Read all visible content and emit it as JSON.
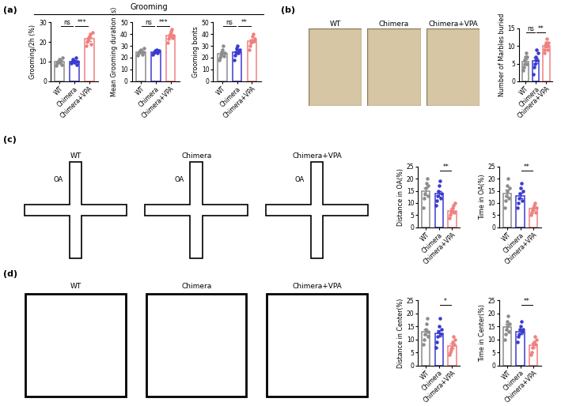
{
  "panels": [
    {
      "label": "(a)",
      "header": "Grooming"
    },
    {
      "label": "(b)",
      "images": [
        "WT",
        "Chimera",
        "Chimera+VPA"
      ]
    },
    {
      "label": "(c)",
      "images": [
        "WT",
        "Chimera",
        "Chimera+VPA"
      ],
      "arm_label": "OA"
    },
    {
      "label": "(d)",
      "images": [
        "WT",
        "Chimera",
        "Chimera+VPA"
      ]
    }
  ],
  "chart_data": [
    {
      "type": "bar",
      "ylabel": "Grooming/2h (%)",
      "categories": [
        "WT",
        "Chimera",
        "Chimera+VPA"
      ],
      "values": [
        9.8,
        10.1,
        21.5
      ],
      "errors": [
        0.6,
        0.5,
        0.9
      ],
      "points": [
        [
          8,
          9,
          10,
          11,
          9.5,
          10.5,
          8.5,
          12
        ],
        [
          9,
          10,
          11,
          10.5,
          9.5,
          12,
          8.5,
          10
        ],
        [
          18,
          20,
          21,
          22,
          23,
          24,
          19,
          25
        ]
      ],
      "colors": [
        "#8c8c8c",
        "#3a3ad0",
        "#f08080"
      ],
      "ylim": [
        0,
        30
      ],
      "yticks": [
        0,
        10,
        20,
        30
      ],
      "comparisons": [
        {
          "between": [
            "WT",
            "Chimera"
          ],
          "label": "ns"
        },
        {
          "between": [
            "Chimera",
            "Chimera+VPA"
          ],
          "label": "***"
        }
      ]
    },
    {
      "type": "bar",
      "ylabel": "Mean Grooming duration (s)",
      "categories": [
        "WT",
        "Chimera",
        "Chimera+VPA"
      ],
      "values": [
        25,
        25,
        38.6
      ],
      "errors": [
        0.8,
        0.6,
        1.3
      ],
      "points": [
        [
          22,
          24,
          25,
          26,
          27,
          23,
          25,
          28
        ],
        [
          23,
          24,
          25,
          26,
          25,
          27,
          24,
          26
        ],
        [
          33,
          36,
          38,
          40,
          42,
          44,
          37,
          39
        ]
      ],
      "colors": [
        "#8c8c8c",
        "#3a3ad0",
        "#f08080"
      ],
      "ylim": [
        0,
        50
      ],
      "yticks": [
        0,
        10,
        20,
        30,
        40,
        50
      ],
      "comparisons": [
        {
          "between": [
            "WT",
            "Chimera"
          ],
          "label": "ns"
        },
        {
          "between": [
            "Chimera",
            "Chimera+VPA"
          ],
          "label": "***"
        }
      ]
    },
    {
      "type": "bar",
      "ylabel": "Grooming bonts",
      "categories": [
        "WT",
        "Chimera",
        "Chimera+VPA"
      ],
      "values": [
        23.4,
        25,
        34.1
      ],
      "errors": [
        1.4,
        1.4,
        1.5
      ],
      "points": [
        [
          18,
          20,
          22,
          25,
          27,
          30,
          21,
          24
        ],
        [
          18,
          22,
          25,
          28,
          30,
          24,
          26,
          27
        ],
        [
          27,
          30,
          33,
          35,
          38,
          40,
          34,
          36
        ]
      ],
      "colors": [
        "#8c8c8c",
        "#3a3ad0",
        "#f08080"
      ],
      "ylim": [
        0,
        50
      ],
      "yticks": [
        0,
        10,
        20,
        30,
        40,
        50
      ],
      "comparisons": [
        {
          "between": [
            "WT",
            "Chimera"
          ],
          "label": "ns"
        },
        {
          "between": [
            "Chimera",
            "Chimera+VPA"
          ],
          "label": "**"
        }
      ]
    },
    {
      "type": "bar",
      "ylabel": "Number of Marbles buried",
      "categories": [
        "WT",
        "Chimera",
        "Chimera+VPA"
      ],
      "values": [
        5.6,
        5.9,
        10
      ],
      "errors": [
        0.6,
        0.8,
        0.5
      ],
      "points": [
        [
          3,
          4,
          5,
          6,
          7,
          8,
          5,
          7
        ],
        [
          2,
          4,
          5,
          6,
          7,
          9,
          6,
          8
        ],
        [
          8,
          9,
          10,
          11,
          12,
          9,
          10,
          11
        ]
      ],
      "colors": [
        "#8c8c8c",
        "#3a3ad0",
        "#f08080"
      ],
      "ylim": [
        0,
        15
      ],
      "yticks": [
        0,
        5,
        10,
        15
      ],
      "comparisons": [
        {
          "between": [
            "WT",
            "Chimera"
          ],
          "label": "ns"
        },
        {
          "between": [
            "Chimera",
            "Chimera+VPA"
          ],
          "label": "**"
        }
      ]
    },
    {
      "type": "bar",
      "ylabel": "Distance in OA(%)",
      "categories": [
        "WT",
        "Chimera",
        "Chimera+VPA"
      ],
      "values": [
        14.8,
        13.8,
        6.9
      ],
      "errors": [
        1.4,
        1.2,
        0.7
      ],
      "points": [
        [
          8,
          12,
          14,
          16,
          18,
          20,
          13,
          17
        ],
        [
          9,
          11,
          13,
          15,
          17,
          19,
          12,
          14
        ],
        [
          4,
          5,
          6,
          7,
          8,
          9,
          6,
          10
        ]
      ],
      "colors": [
        "#8c8c8c",
        "#3a3ad0",
        "#f08080"
      ],
      "ylim": [
        0,
        25
      ],
      "yticks": [
        0,
        5,
        10,
        15,
        20,
        25
      ],
      "comparisons": [
        {
          "between": [
            "Chimera",
            "Chimera+VPA"
          ],
          "label": "**"
        }
      ]
    },
    {
      "type": "bar",
      "ylabel": "Time in OA(%)",
      "categories": [
        "WT",
        "Chimera",
        "Chimera+VPA"
      ],
      "values": [
        14,
        13,
        7.6
      ],
      "errors": [
        1.4,
        1.2,
        0.6
      ],
      "points": [
        [
          8,
          11,
          13,
          15,
          17,
          20,
          12,
          16
        ],
        [
          8,
          10,
          12,
          14,
          16,
          18,
          11,
          15
        ],
        [
          5,
          6,
          7,
          8,
          9,
          10,
          6,
          8
        ]
      ],
      "colors": [
        "#8c8c8c",
        "#3a3ad0",
        "#f08080"
      ],
      "ylim": [
        0,
        25
      ],
      "yticks": [
        0,
        5,
        10,
        15,
        20,
        25
      ],
      "comparisons": [
        {
          "between": [
            "Chimera",
            "Chimera+VPA"
          ],
          "label": "**"
        }
      ]
    },
    {
      "type": "bar",
      "ylabel": "Distance in Center(%)",
      "categories": [
        "WT",
        "Chimera",
        "Chimera+VPA"
      ],
      "values": [
        12.8,
        12.4,
        7.5
      ],
      "errors": [
        1.2,
        1.3,
        0.9
      ],
      "points": [
        [
          8,
          10,
          12,
          14,
          16,
          18,
          11,
          13
        ],
        [
          7,
          9,
          11,
          13,
          15,
          18,
          12,
          14
        ],
        [
          4,
          5,
          6,
          7,
          9,
          11,
          8,
          10
        ]
      ],
      "colors": [
        "#8c8c8c",
        "#3a3ad0",
        "#f08080"
      ],
      "ylim": [
        0,
        25
      ],
      "yticks": [
        0,
        5,
        10,
        15,
        20,
        25
      ],
      "comparisons": [
        {
          "between": [
            "Chimera",
            "Chimera+VPA"
          ],
          "label": "*"
        }
      ]
    },
    {
      "type": "bar",
      "ylabel": "Time in Center(%)",
      "categories": [
        "WT",
        "Chimera",
        "Chimera+VPA"
      ],
      "values": [
        14.8,
        13,
        7.9
      ],
      "errors": [
        1.1,
        0.9,
        0.9
      ],
      "points": [
        [
          10,
          12,
          14,
          15,
          17,
          19,
          13,
          16
        ],
        [
          9,
          11,
          12,
          14,
          15,
          17,
          13,
          14
        ],
        [
          4,
          5,
          7,
          8,
          9,
          11,
          8,
          10
        ]
      ],
      "colors": [
        "#8c8c8c",
        "#3a3ad0",
        "#f08080"
      ],
      "ylim": [
        0,
        25
      ],
      "yticks": [
        0,
        5,
        10,
        15,
        20,
        25
      ],
      "comparisons": [
        {
          "between": [
            "Chimera",
            "Chimera+VPA"
          ],
          "label": "**"
        }
      ]
    }
  ]
}
